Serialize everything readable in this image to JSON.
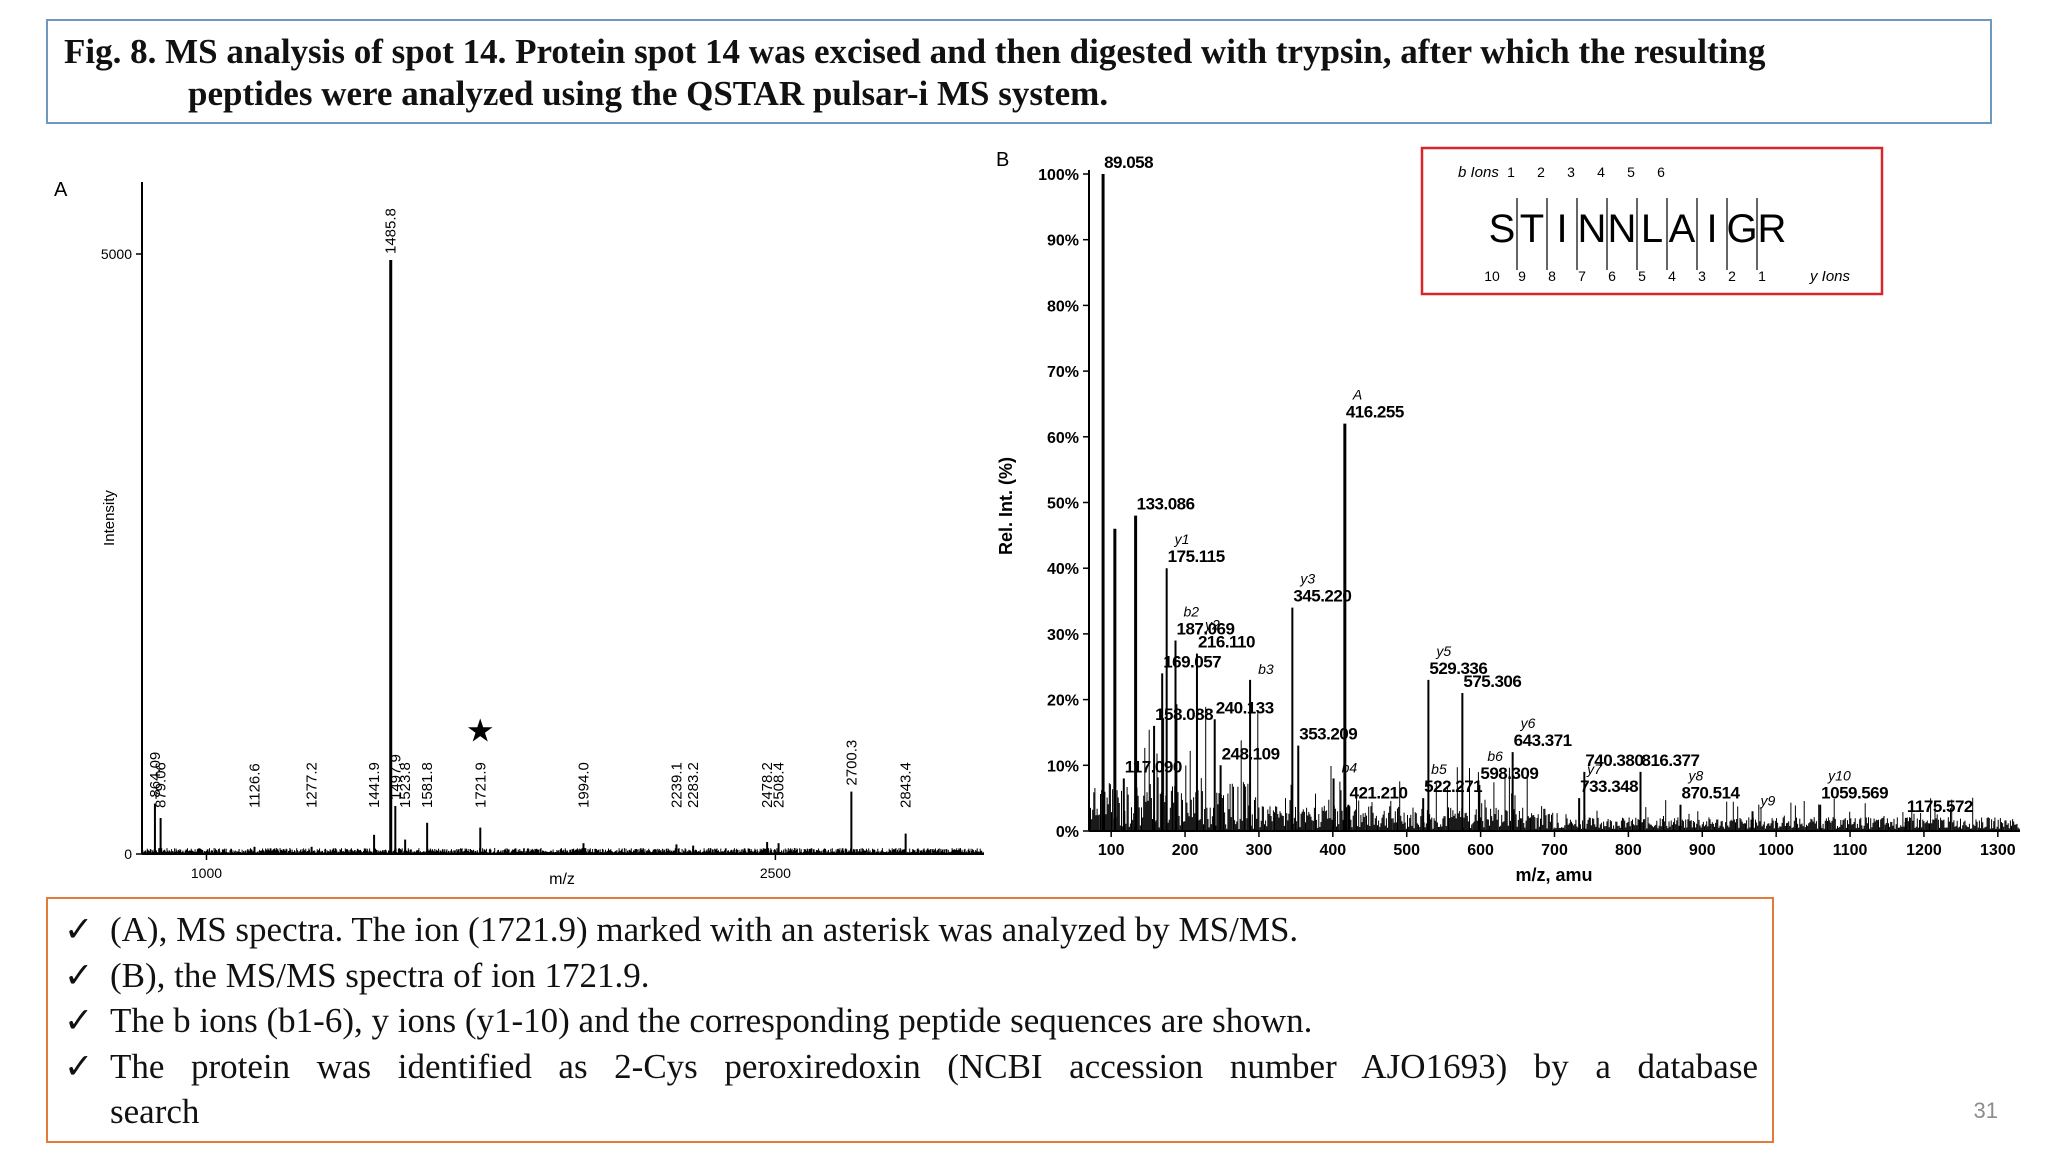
{
  "caption": {
    "line1": "Fig. 8. MS analysis of spot 14. Protein spot 14 was excised and then digested with trypsin, after which the resulting",
    "line2": "peptides were analyzed using the QSTAR pulsar-i MS system."
  },
  "notes": [
    {
      "check": "✓",
      "text": "(A), MS spectra. The ion (1721.9) marked with an asterisk was analyzed by MS/MS."
    },
    {
      "check": "✓",
      "text": "(B), the MS/MS spectra of ion 1721.9."
    },
    {
      "check": "✓",
      "text": "The b ions (b1-6), y ions (y1-10) and the corresponding peptide sequences are shown."
    },
    {
      "check": "✓",
      "text_line1": "The protein was identified as 2-Cys peroxiredoxin (NCBI accession number AJO1693) by a database",
      "text_line2": "search"
    }
  ],
  "slide_number": "31",
  "chart_data": [
    {
      "type": "bar",
      "panel_label": "A",
      "xlabel": "m/z",
      "ylabel": "Intensity",
      "xlim": [
        830,
        3050
      ],
      "ylim": [
        0,
        5600
      ],
      "x_ticks": [
        "1000",
        "2500"
      ],
      "y_ticks": [
        "0",
        "5000"
      ],
      "marker_symbol": "★",
      "marked_peak": "1721.9",
      "peaks": [
        {
          "mz": 864.09,
          "label": "864.09",
          "intensity": 420
        },
        {
          "mz": 879.06,
          "label": "879.06",
          "intensity": 300
        },
        {
          "mz": 1126.6,
          "label": "1126.6",
          "intensity": 60
        },
        {
          "mz": 1277.2,
          "label": "1277.2",
          "intensity": 60
        },
        {
          "mz": 1441.9,
          "label": "1441.9",
          "intensity": 160
        },
        {
          "mz": 1485.8,
          "label": "1485.8",
          "intensity": 4950
        },
        {
          "mz": 1497.9,
          "label": "1497.9",
          "intensity": 400
        },
        {
          "mz": 1523.8,
          "label": "1523.8",
          "intensity": 120
        },
        {
          "mz": 1581.8,
          "label": "1581.8",
          "intensity": 260
        },
        {
          "mz": 1721.9,
          "label": "1721.9",
          "intensity": 220
        },
        {
          "mz": 1994.0,
          "label": "1994.0",
          "intensity": 90
        },
        {
          "mz": 2239.1,
          "label": "2239.1",
          "intensity": 80
        },
        {
          "mz": 2283.2,
          "label": "2283.2",
          "intensity": 70
        },
        {
          "mz": 2478.2,
          "label": "2478.2",
          "intensity": 100
        },
        {
          "mz": 2508.4,
          "label": "2508.4",
          "intensity": 90
        },
        {
          "mz": 2700.3,
          "label": "2700.3",
          "intensity": 520
        },
        {
          "mz": 2843.4,
          "label": "2843.4",
          "intensity": 170
        }
      ]
    },
    {
      "type": "bar",
      "panel_label": "B",
      "xlabel": "m/z, amu",
      "ylabel": "Rel. Int. (%)",
      "xlim": [
        70,
        1330
      ],
      "ylim": [
        0,
        100
      ],
      "x_ticks": [
        "100",
        "200",
        "300",
        "400",
        "500",
        "600",
        "700",
        "800",
        "900",
        "1000",
        "1100",
        "1200",
        "1300"
      ],
      "y_ticks": [
        "0%",
        "10%",
        "20%",
        "30%",
        "40%",
        "50%",
        "60%",
        "70%",
        "80%",
        "90%",
        "100%"
      ],
      "peaks": [
        {
          "mz": 89.058,
          "label": "89.058",
          "ion": "",
          "rel": 100
        },
        {
          "mz": 105.0,
          "label": "",
          "ion": "",
          "rel": 46
        },
        {
          "mz": 117.09,
          "label": "117.090",
          "ion": "",
          "rel": 8
        },
        {
          "mz": 133.086,
          "label": "133.086",
          "ion": "",
          "rel": 48
        },
        {
          "mz": 158.088,
          "label": "158.088",
          "ion": "",
          "rel": 16
        },
        {
          "mz": 169.057,
          "label": "169.057",
          "ion": "",
          "rel": 24
        },
        {
          "mz": 175.115,
          "label": "175.115",
          "ion": "y1",
          "rel": 40
        },
        {
          "mz": 187.069,
          "label": "187.069",
          "ion": "b2",
          "rel": 29
        },
        {
          "mz": 216.11,
          "label": "216.110",
          "ion": "y2",
          "rel": 27
        },
        {
          "mz": 240.133,
          "label": "240.133",
          "ion": "",
          "rel": 17
        },
        {
          "mz": 248.109,
          "label": "248.109",
          "ion": "",
          "rel": 10
        },
        {
          "mz": 288.0,
          "label": "",
          "ion": "b3",
          "rel": 23
        },
        {
          "mz": 345.22,
          "label": "345.220",
          "ion": "y3",
          "rel": 34
        },
        {
          "mz": 353.209,
          "label": "353.209",
          "ion": "",
          "rel": 13
        },
        {
          "mz": 401.0,
          "label": "",
          "ion": "b4",
          "rel": 8
        },
        {
          "mz": 416.255,
          "label": "416.255",
          "ion": "A",
          "rel": 62
        },
        {
          "mz": 421.21,
          "label": "421.210",
          "ion": "",
          "rel": 4
        },
        {
          "mz": 522.271,
          "label": "522.271",
          "ion": "b5",
          "rel": 5
        },
        {
          "mz": 529.336,
          "label": "529.336",
          "ion": "y5",
          "rel": 23
        },
        {
          "mz": 575.306,
          "label": "575.306",
          "ion": "",
          "rel": 21
        },
        {
          "mz": 598.309,
          "label": "598.309",
          "ion": "b6",
          "rel": 7
        },
        {
          "mz": 643.371,
          "label": "643.371",
          "ion": "y6",
          "rel": 12
        },
        {
          "mz": 733.348,
          "label": "733.348",
          "ion": "y7",
          "rel": 5
        },
        {
          "mz": 740.38,
          "label": "740.380",
          "ion": "",
          "rel": 9
        },
        {
          "mz": 816.377,
          "label": "816.377",
          "ion": "",
          "rel": 9
        },
        {
          "mz": 870.514,
          "label": "870.514",
          "ion": "y8",
          "rel": 4
        },
        {
          "mz": 968.0,
          "label": "",
          "ion": "y9",
          "rel": 3
        },
        {
          "mz": 1059.569,
          "label": "1059.569",
          "ion": "y10",
          "rel": 4
        },
        {
          "mz": 1175.572,
          "label": "1175.572",
          "ion": "",
          "rel": 2
        }
      ],
      "sequence": {
        "residues": [
          "S",
          "T",
          "I",
          "N",
          "N",
          "L",
          "A",
          "I",
          "G",
          "R"
        ],
        "b_ions_label": "b Ions",
        "b_numbers": [
          "1",
          "2",
          "3",
          "4",
          "5",
          "6"
        ],
        "y_ions_label": "y Ions",
        "y_numbers": [
          "10",
          "9",
          "8",
          "7",
          "6",
          "5",
          "4",
          "3",
          "2",
          "1"
        ],
        "box_color": "#d9262b"
      }
    }
  ]
}
